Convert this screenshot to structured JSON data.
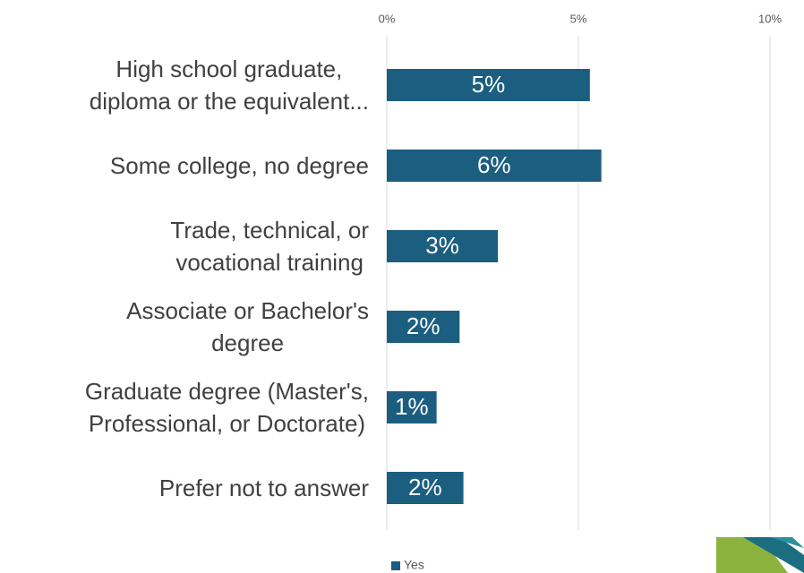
{
  "chart_data": {
    "type": "bar",
    "orientation": "horizontal",
    "categories": [
      "High school graduate,\ndiploma or the equivalent...",
      "Some college, no degree",
      "Trade, technical, or\nvocational training",
      "Associate or Bachelor's\ndegree",
      "Graduate degree (Master's,\nProfessional, or Doctorate)",
      "Prefer not to answer"
    ],
    "series": [
      {
        "name": "Yes",
        "color": "#1b5e80",
        "values": [
          5.3,
          5.6,
          2.9,
          1.9,
          1.3,
          2.0
        ],
        "value_labels": [
          "5%",
          "6%",
          "3%",
          "2%",
          "1%",
          "2%"
        ]
      }
    ],
    "xlim": [
      0,
      10
    ],
    "xticks": [
      {
        "value": 0,
        "label": "0%"
      },
      {
        "value": 5,
        "label": "5%"
      },
      {
        "value": 10,
        "label": "10%"
      }
    ],
    "grid": true,
    "legend": "bottom"
  }
}
